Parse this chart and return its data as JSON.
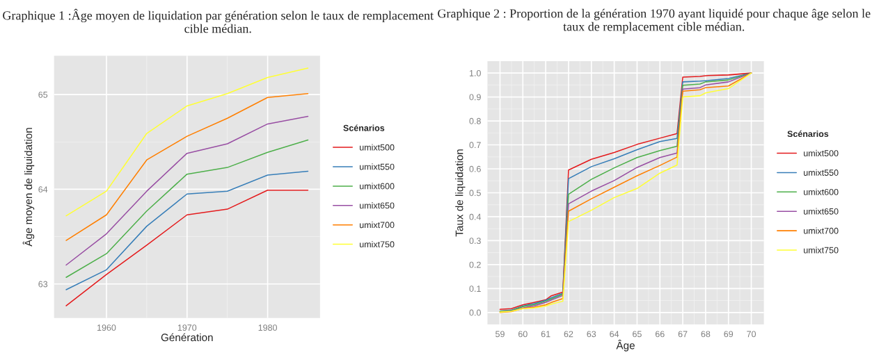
{
  "chart_data": [
    {
      "type": "line",
      "title": "Graphique 1 :Âge moyen de liquidation par génération selon le taux de remplacement cible médian.",
      "xlabel": "Génération",
      "ylabel": "Âge moyen de liquidation",
      "legend_title": "Scénarios",
      "legend": "right",
      "grid": true,
      "x": [
        1955,
        1960,
        1965,
        1970,
        1975,
        1980,
        1985
      ],
      "xlim": [
        1953.5,
        1986.5
      ],
      "xticks": [
        1960,
        1970,
        1980
      ],
      "ylim": [
        62.64,
        65.41
      ],
      "yticks": [
        63,
        64,
        65
      ],
      "series": [
        {
          "name": "umixt500",
          "color": "#e41a1c",
          "values": [
            62.77,
            63.1,
            63.41,
            63.73,
            63.79,
            63.99,
            63.99
          ]
        },
        {
          "name": "umixt550",
          "color": "#377eb8",
          "values": [
            62.94,
            63.15,
            63.61,
            63.95,
            63.98,
            64.15,
            64.19
          ]
        },
        {
          "name": "umixt600",
          "color": "#4daf4a",
          "values": [
            63.07,
            63.32,
            63.77,
            64.16,
            64.23,
            64.39,
            64.52
          ]
        },
        {
          "name": "umixt650",
          "color": "#984ea3",
          "values": [
            63.2,
            63.53,
            63.98,
            64.38,
            64.48,
            64.69,
            64.77
          ]
        },
        {
          "name": "umixt700",
          "color": "#ff7f00",
          "values": [
            63.46,
            63.73,
            64.31,
            64.56,
            64.75,
            64.97,
            65.01
          ]
        },
        {
          "name": "umixt750",
          "color": "#ffff33",
          "values": [
            63.72,
            63.98,
            64.59,
            64.88,
            65.01,
            65.18,
            65.28
          ]
        }
      ]
    },
    {
      "type": "line",
      "title": "Graphique 2 : Proportion de la génération 1970 ayant liquidé pour chaque âge selon le taux de remplacement cible médian.",
      "xlabel": "Âge",
      "ylabel": "Taux de liquidation",
      "legend_title": "Scénarios",
      "legend": "right",
      "grid": true,
      "x": [
        59,
        59.5,
        60,
        60.5,
        61,
        61.25,
        61.75,
        62,
        63,
        64,
        65,
        66,
        66.75,
        67,
        67.75,
        68,
        69,
        70
      ],
      "xlim": [
        58.45,
        70.55
      ],
      "xticks": [
        59,
        60,
        61,
        62,
        63,
        64,
        65,
        66,
        67,
        68,
        69,
        70
      ],
      "ylim": [
        -0.05,
        1.05
      ],
      "yticks": [
        {
          "value": 0,
          "label": "0.0"
        },
        {
          "value": 0.1,
          "label": "0.1"
        },
        {
          "value": 0.2,
          "label": "0.2"
        },
        {
          "value": 0.3,
          "label": "0.3"
        },
        {
          "value": 0.4,
          "label": "0.4"
        },
        {
          "value": 0.5,
          "label": "0.5"
        },
        {
          "value": 0.6,
          "label": "0.6"
        },
        {
          "value": 0.7,
          "label": "0.7"
        },
        {
          "value": 0.8,
          "label": "0.8"
        },
        {
          "value": 0.9,
          "label": "0.9"
        },
        {
          "value": 1,
          "label": "1.0"
        }
      ],
      "series": [
        {
          "name": "umixt500",
          "color": "#e41a1c",
          "values": [
            0.013,
            0.016,
            0.032,
            0.042,
            0.053,
            0.07,
            0.085,
            0.595,
            0.64,
            0.668,
            0.702,
            0.728,
            0.747,
            0.983,
            0.986,
            0.989,
            0.992,
            1.0
          ]
        },
        {
          "name": "umixt550",
          "color": "#377eb8",
          "values": [
            0.006,
            0.01,
            0.027,
            0.037,
            0.051,
            0.062,
            0.08,
            0.559,
            0.609,
            0.642,
            0.68,
            0.714,
            0.727,
            0.963,
            0.966,
            0.968,
            0.977,
            1.0
          ]
        },
        {
          "name": "umixt600",
          "color": "#4daf4a",
          "values": [
            0.005,
            0.008,
            0.025,
            0.033,
            0.047,
            0.057,
            0.076,
            0.494,
            0.556,
            0.604,
            0.647,
            0.676,
            0.694,
            0.949,
            0.954,
            0.963,
            0.971,
            1.0
          ]
        },
        {
          "name": "umixt650",
          "color": "#984ea3",
          "values": [
            0.003,
            0.006,
            0.019,
            0.028,
            0.042,
            0.052,
            0.071,
            0.454,
            0.507,
            0.551,
            0.606,
            0.647,
            0.666,
            0.933,
            0.939,
            0.95,
            0.963,
            1.0
          ]
        },
        {
          "name": "umixt700",
          "color": "#ff7f00",
          "values": [
            0.0,
            0.004,
            0.017,
            0.022,
            0.032,
            0.042,
            0.058,
            0.423,
            0.475,
            0.523,
            0.571,
            0.614,
            0.649,
            0.924,
            0.93,
            0.939,
            0.946,
            1.0
          ]
        },
        {
          "name": "umixt750",
          "color": "#ffff33",
          "values": [
            0.002,
            0.005,
            0.016,
            0.019,
            0.027,
            0.035,
            0.047,
            0.38,
            0.427,
            0.48,
            0.518,
            0.582,
            0.616,
            0.9,
            0.905,
            0.917,
            0.935,
            1.0
          ]
        }
      ]
    }
  ]
}
